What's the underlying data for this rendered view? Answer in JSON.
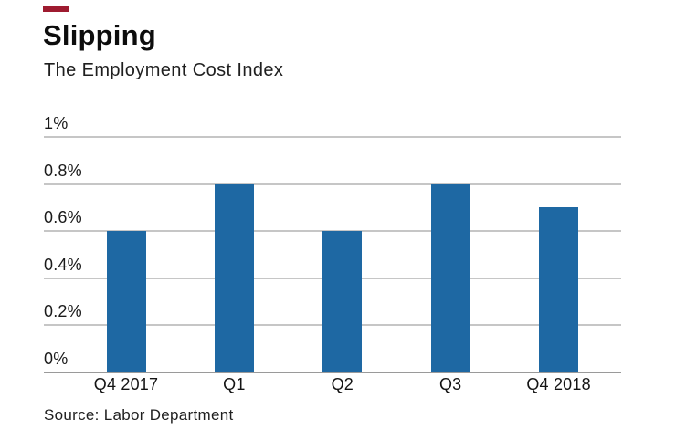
{
  "brand": {
    "dash_color": "#9e1b30"
  },
  "header": {
    "title": "Slipping",
    "subtitle": "The Employment Cost Index"
  },
  "footer": {
    "source": "Source: Labor Department"
  },
  "chart_data": {
    "type": "bar",
    "title": "Slipping",
    "subtitle": "The Employment Cost Index",
    "source": "Source: Labor Department",
    "categories": [
      "Q4 2017",
      "Q1",
      "Q2",
      "Q3",
      "Q4 2018"
    ],
    "values": [
      0.6,
      0.8,
      0.6,
      0.8,
      0.7
    ],
    "unit": "%",
    "ylim": [
      0,
      1.0
    ],
    "y_ticks": [
      {
        "value": 1.0,
        "label": "1%"
      },
      {
        "value": 0.8,
        "label": "0.8%"
      },
      {
        "value": 0.6,
        "label": "0.6%"
      },
      {
        "value": 0.4,
        "label": "0.4%"
      },
      {
        "value": 0.2,
        "label": "0.2%"
      },
      {
        "value": 0.0,
        "label": "0%"
      }
    ],
    "grid": true,
    "legend": "none",
    "bar_color": "#1e68a3",
    "gridline_color": "#c6c6c6",
    "baseline_color": "#9a9a9a"
  }
}
